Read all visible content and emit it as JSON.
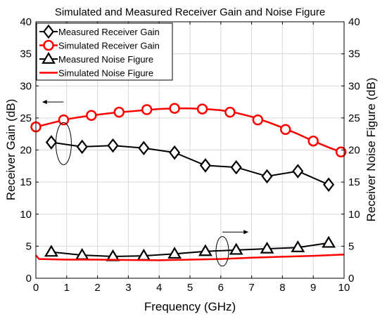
{
  "chart_data": {
    "type": "line",
    "title": "Simulated and Measured Receiver Gain and Noise Figure",
    "xlabel": "Frequency (GHz)",
    "ylabel": "Receiver Gain (dB)",
    "ylabel_right": "Receiver Noise Figure (dB)",
    "xlim": [
      0,
      10
    ],
    "ylim": [
      0,
      40
    ],
    "ylim_right": [
      0,
      40
    ],
    "xticks": [
      "0",
      "1",
      "2",
      "3",
      "4",
      "5",
      "6",
      "7",
      "8",
      "9",
      "10"
    ],
    "yticks": [
      "0",
      "5",
      "10",
      "15",
      "20",
      "25",
      "30",
      "35",
      "40"
    ],
    "yticks_right": [
      "0",
      "5",
      "10",
      "15",
      "20",
      "25",
      "30",
      "35",
      "40"
    ],
    "grid": true,
    "legend_position": "top-left",
    "series": [
      {
        "name": "Measured Receiver Gain",
        "marker": "diamond",
        "color": "#000000",
        "x": [
          0.5,
          1.5,
          2.5,
          3.5,
          4.5,
          5.5,
          6.5,
          7.5,
          8.5,
          9.5
        ],
        "y": [
          21.2,
          20.5,
          20.7,
          20.3,
          19.6,
          17.6,
          17.3,
          15.9,
          16.7,
          14.6
        ]
      },
      {
        "name": "Simulated Receiver Gain",
        "marker": "circle",
        "color": "#ff0000",
        "x": [
          0,
          0.9,
          1.8,
          2.7,
          3.6,
          4.5,
          5.4,
          6.3,
          7.2,
          8.1,
          9.0,
          9.9
        ],
        "y": [
          23.6,
          24.7,
          25.4,
          25.9,
          26.3,
          26.5,
          26.4,
          25.9,
          24.7,
          23.2,
          21.4,
          19.7
        ],
        "curve_x": [
          0,
          0.5,
          1,
          1.5,
          2,
          2.5,
          3,
          3.5,
          4,
          4.5,
          5,
          5.5,
          6,
          6.5,
          7,
          7.5,
          8,
          8.5,
          9,
          9.5,
          10
        ],
        "curve_y": [
          23.6,
          24.2,
          24.8,
          25.2,
          25.5,
          25.8,
          26.0,
          26.2,
          26.4,
          26.5,
          26.5,
          26.4,
          26.2,
          25.8,
          25.2,
          24.4,
          23.5,
          22.5,
          21.4,
          20.4,
          19.5
        ]
      },
      {
        "name": "Measured Noise Figure",
        "marker": "triangle",
        "color": "#000000",
        "x": [
          0.5,
          1.5,
          2.5,
          3.5,
          4.5,
          5.5,
          6.5,
          7.5,
          8.5,
          9.5
        ],
        "y": [
          4.1,
          3.6,
          3.4,
          3.5,
          3.8,
          4.2,
          4.4,
          4.6,
          4.8,
          5.5
        ]
      },
      {
        "name": "Simulated Noise Figure",
        "marker": "none",
        "color": "#ff0000",
        "x": [
          0,
          0.1,
          1,
          2,
          3,
          4,
          5,
          6,
          7,
          8,
          9,
          10
        ],
        "y": [
          3.6,
          3.0,
          2.9,
          2.9,
          2.85,
          2.8,
          2.9,
          3.0,
          3.2,
          3.35,
          3.5,
          3.7
        ]
      }
    ]
  }
}
